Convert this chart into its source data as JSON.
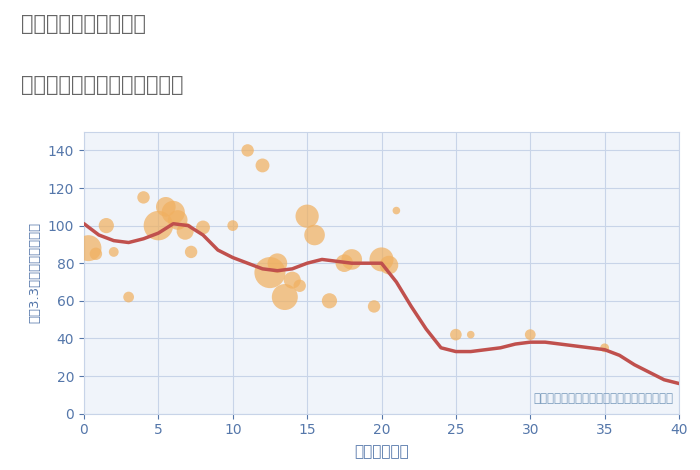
{
  "title_line1": "三重県津市一志町小山",
  "title_line2": "築年数別中古マンション価格",
  "xlabel": "築年数（年）",
  "ylabel": "坪（3.3㎡）単価（万円）",
  "xlim": [
    0,
    40
  ],
  "ylim": [
    0,
    150
  ],
  "xticks": [
    0,
    5,
    10,
    15,
    20,
    25,
    30,
    35,
    40
  ],
  "yticks": [
    0,
    20,
    40,
    60,
    80,
    100,
    120,
    140
  ],
  "scatter_x": [
    0.3,
    0.8,
    1.5,
    2.0,
    3.0,
    4.0,
    5.0,
    5.5,
    6.0,
    6.3,
    6.8,
    7.2,
    8.0,
    10.0,
    11.0,
    12.0,
    12.5,
    13.0,
    13.5,
    14.0,
    14.5,
    15.0,
    15.5,
    16.5,
    17.5,
    18.0,
    19.5,
    20.0,
    20.5,
    21.0,
    25.0,
    26.0,
    30.0,
    35.0
  ],
  "scatter_y": [
    88,
    85,
    100,
    86,
    62,
    115,
    100,
    110,
    107,
    103,
    97,
    86,
    99,
    100,
    140,
    132,
    75,
    80,
    62,
    71,
    68,
    105,
    95,
    60,
    80,
    82,
    57,
    82,
    79,
    108,
    42,
    42,
    42,
    35
  ],
  "scatter_size": [
    350,
    80,
    120,
    50,
    60,
    80,
    450,
    200,
    280,
    200,
    150,
    80,
    100,
    60,
    80,
    100,
    500,
    200,
    350,
    150,
    80,
    280,
    220,
    120,
    160,
    220,
    80,
    300,
    180,
    30,
    70,
    30,
    60,
    40
  ],
  "scatter_color": "#f0b060",
  "scatter_alpha": 0.72,
  "trend_x": [
    0,
    1,
    2,
    3,
    4,
    5,
    6,
    7,
    8,
    9,
    10,
    11,
    12,
    13,
    14,
    15,
    16,
    17,
    18,
    19,
    20,
    21,
    22,
    23,
    24,
    25,
    26,
    27,
    28,
    29,
    30,
    31,
    32,
    33,
    34,
    35,
    36,
    37,
    38,
    39,
    40
  ],
  "trend_y": [
    101,
    95,
    92,
    91,
    93,
    96,
    101,
    100,
    95,
    87,
    83,
    80,
    77,
    76,
    77,
    80,
    82,
    81,
    80,
    80,
    80,
    70,
    57,
    45,
    35,
    33,
    33,
    34,
    35,
    37,
    38,
    38,
    37,
    36,
    35,
    34,
    31,
    26,
    22,
    18,
    16
  ],
  "trend_color": "#c0504d",
  "trend_linewidth": 2.5,
  "bg_color": "#ffffff",
  "plot_bg_color": "#f0f4fa",
  "grid_color": "#c8d4e8",
  "title_color": "#666666",
  "axis_label_color": "#5577aa",
  "tick_color": "#5577aa",
  "note_text": "円の大きさは、取引のあった物件面積を示す",
  "note_color": "#7799bb",
  "note_fontsize": 8.5
}
